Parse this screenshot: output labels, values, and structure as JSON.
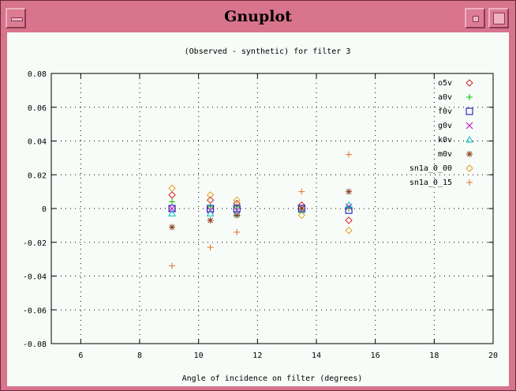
{
  "window": {
    "title": "Gnuplot"
  },
  "chart_data": {
    "type": "scatter",
    "title": "(Observed - synthetic) for filter 3",
    "xlabel": "Angle of incidence on filter (degrees)",
    "ylabel": "",
    "xlim": [
      5,
      20
    ],
    "ylim": [
      -0.08,
      0.08
    ],
    "x_ticks": [
      6,
      8,
      10,
      12,
      14,
      16,
      18,
      20
    ],
    "x_tick_labels": [
      "6",
      "8",
      "10",
      "12",
      "14",
      "16",
      "18",
      "20"
    ],
    "y_ticks": [
      0.08,
      0.06,
      0.04,
      0.02,
      0,
      -0.02,
      -0.04,
      -0.06,
      -0.08
    ],
    "y_tick_labels": [
      "0.08",
      "0.06",
      "0.04",
      "0.02",
      "0",
      "-0.02",
      "-0.04",
      "-0.06",
      "-0.08"
    ],
    "grid": true,
    "legend_position": "top-right",
    "series": [
      {
        "name": "o5v",
        "marker": "diamond",
        "color": "#d02020",
        "points": [
          [
            9.1,
            0.008
          ],
          [
            10.4,
            0.005
          ],
          [
            11.3,
            0.003
          ],
          [
            13.5,
            0.002
          ],
          [
            15.1,
            -0.007
          ]
        ]
      },
      {
        "name": "a0v",
        "marker": "plus",
        "color": "#00c000",
        "points": [
          [
            9.1,
            0.004
          ],
          [
            10.4,
            0.001
          ],
          [
            11.3,
            0.001
          ],
          [
            13.5,
            0.0
          ],
          [
            15.1,
            0.0
          ]
        ]
      },
      {
        "name": "f0v",
        "marker": "square",
        "color": "#0000c0",
        "points": [
          [
            9.1,
            0.0
          ],
          [
            10.4,
            0.0
          ],
          [
            11.3,
            0.0
          ],
          [
            13.5,
            0.0
          ],
          [
            15.1,
            -0.001
          ]
        ]
      },
      {
        "name": "g0v",
        "marker": "cross",
        "color": "#c000c0",
        "points": [
          [
            9.1,
            0.0
          ],
          [
            10.4,
            -0.001
          ],
          [
            11.3,
            -0.001
          ],
          [
            13.5,
            0.0
          ],
          [
            15.1,
            0.001
          ]
        ]
      },
      {
        "name": "k0v",
        "marker": "triangle",
        "color": "#00c0c0",
        "points": [
          [
            9.1,
            -0.003
          ],
          [
            10.4,
            -0.003
          ],
          [
            11.3,
            -0.003
          ],
          [
            13.5,
            -0.001
          ],
          [
            15.1,
            0.002
          ]
        ]
      },
      {
        "name": "m0v",
        "marker": "star",
        "color": "#904020",
        "points": [
          [
            9.1,
            -0.011
          ],
          [
            10.4,
            -0.007
          ],
          [
            11.3,
            -0.004
          ],
          [
            13.5,
            0.0
          ],
          [
            15.1,
            0.01
          ]
        ]
      },
      {
        "name": "sn1a_0_00",
        "marker": "diamond",
        "color": "#e0a020",
        "points": [
          [
            9.1,
            0.012
          ],
          [
            10.4,
            0.008
          ],
          [
            11.3,
            0.005
          ],
          [
            13.5,
            -0.004
          ],
          [
            15.1,
            -0.013
          ]
        ]
      },
      {
        "name": "sn1a_0_15",
        "marker": "plus",
        "color": "#e07030",
        "points": [
          [
            9.1,
            -0.034
          ],
          [
            10.4,
            -0.023
          ],
          [
            11.3,
            -0.014
          ],
          [
            13.5,
            0.01
          ],
          [
            15.1,
            0.032
          ]
        ]
      }
    ]
  }
}
